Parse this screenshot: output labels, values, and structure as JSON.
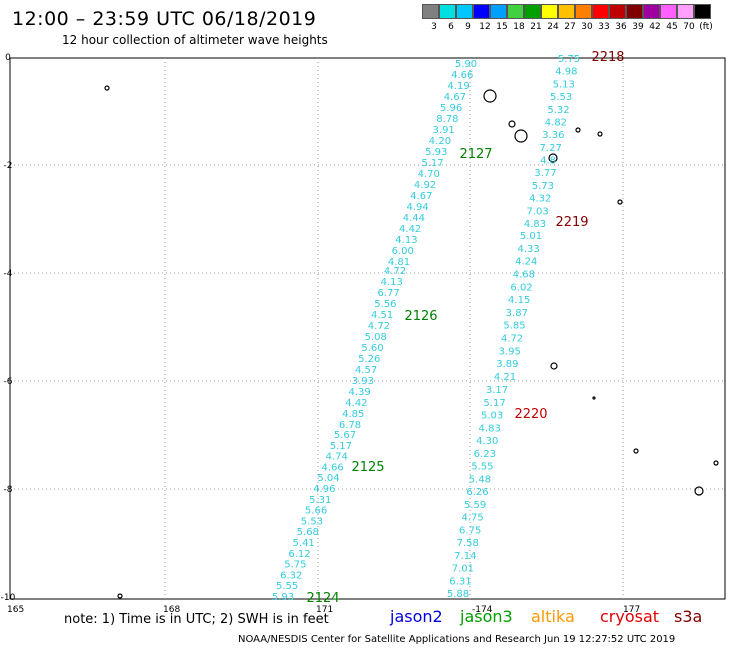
{
  "header": {
    "title": "12:00 – 23:59 UTC 06/18/2019",
    "subtitle": "12 hour collection of altimeter wave heights"
  },
  "colorbar": {
    "colors": [
      "#808080",
      "#00e0e0",
      "#00c8ff",
      "#0000ff",
      "#00a0ff",
      "#40d040",
      "#00a000",
      "#ffff00",
      "#ffc000",
      "#ff8000",
      "#ff0000",
      "#c00000",
      "#800000",
      "#a000a0",
      "#ff60ff",
      "#ffa0ff",
      "#000000"
    ],
    "labels": [
      "3",
      "6",
      "9",
      "12",
      "15",
      "18",
      "21",
      "24",
      "27",
      "30",
      "33",
      "36",
      "39",
      "42",
      "45",
      "70",
      "(ft)"
    ]
  },
  "chart_data": {
    "type": "scatter",
    "x_ticks": [
      "165",
      "168",
      "171",
      "-174",
      "177"
    ],
    "y_ticks": [
      "0",
      "-2",
      "-4",
      "-6",
      "-8",
      "-10"
    ],
    "tracks": [
      {
        "label": "2218",
        "color": "#800000",
        "values": [
          "5.75",
          "4.98",
          "5.13",
          "5.53",
          "5.32",
          "4.82",
          "3.36",
          "7.27",
          "4.8",
          "3.77",
          "5.73",
          "4.32",
          "7.03",
          "4.83"
        ]
      },
      {
        "label": "2219",
        "color": "#800000",
        "values": [
          "5.01",
          "4.33",
          "4.24",
          "4.68",
          "6.02",
          "4.15",
          "3.87",
          "5.85",
          "4.72",
          "3.95",
          "3.89",
          "4.21"
        ]
      },
      {
        "label": "2220",
        "color": "#c00000",
        "values": [
          "3.17",
          "5.17",
          "5.03",
          "4.83",
          "4.30",
          "6.23",
          "5.55",
          "5.48",
          "6.26",
          "5.59",
          "4.75",
          "6.75",
          "7.58",
          "7.14",
          "7.01",
          "6.31",
          "5.88"
        ]
      },
      {
        "label": "2127",
        "color": "#008000",
        "values": [
          "5.90",
          "4.66",
          "4.19",
          "4.67",
          "5.96",
          "8.78",
          "3.91",
          "4.20",
          "5.93",
          "5.17",
          "4.70",
          "4.92",
          "4.67",
          "4.94",
          "4.44",
          "4.42",
          "4.13",
          "6.00",
          "4.81"
        ]
      },
      {
        "label": "2126",
        "color": "#008000",
        "values": [
          "4.72",
          "4.13",
          "6.77",
          "5.56",
          "4.51",
          "4.72",
          "5.08",
          "5.60",
          "5.26",
          "4.57",
          "3.93",
          "4.39",
          "4.42",
          "4.85",
          "6.78"
        ]
      },
      {
        "label": "2125",
        "color": "#008000",
        "values": [
          "5.67",
          "5.17",
          "4.74",
          "4.66",
          "5.04",
          "4.96",
          "5.31",
          "5.66",
          "5.53",
          "5.68",
          "5.41",
          "6.12",
          "5.75",
          "6.32",
          "5.55",
          "5.93"
        ]
      },
      {
        "label": "2124",
        "color": "#008000",
        "values": []
      }
    ]
  },
  "note": "note: 1) Time is in UTC; 2) SWH is in feet",
  "satellites": [
    {
      "name": "jason2",
      "color": "#0000e0"
    },
    {
      "name": "jason3",
      "color": "#00a000"
    },
    {
      "name": "altika",
      "color": "#ff9900"
    },
    {
      "name": "cryosat",
      "color": "#e00000"
    },
    {
      "name": "s3a",
      "color": "#800000"
    }
  ],
  "footer": "NOAA/NESDIS Center for Satellite Applications and Research    Jun 19 12:27:52 UTC 2019"
}
